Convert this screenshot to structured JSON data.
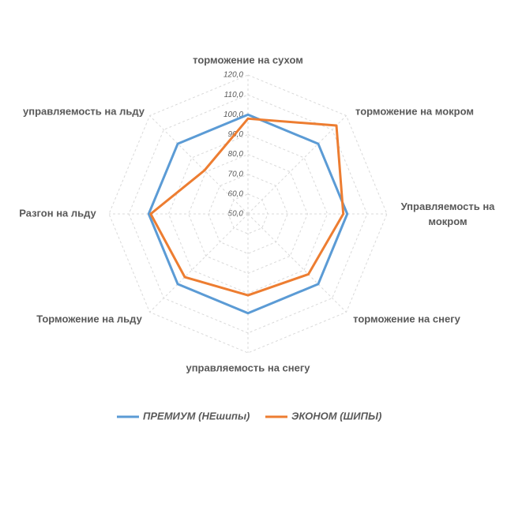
{
  "chart_data": {
    "type": "radar",
    "categories": [
      "торможение на сухом",
      "торможение на мокром",
      "Управляемость на мокром",
      "торможение на снегу",
      "управляемость на снегу",
      "Торможение на льду",
      "Разгон на льду",
      "управляемость на льду"
    ],
    "series": [
      {
        "name": "ПРЕМИУМ (НЕшипы)",
        "color": "#5b9bd5",
        "values": [
          100,
          100,
          100,
          100,
          100,
          100,
          100,
          100
        ]
      },
      {
        "name": "ЭКОНОМ (ШИПЫ)",
        "color": "#ed7d31",
        "values": [
          98,
          113,
          98,
          93,
          91,
          95,
          99,
          81
        ]
      }
    ],
    "ylim": [
      50,
      120
    ],
    "yticks": [
      {
        "value": 50,
        "label": "50,0"
      },
      {
        "value": 60,
        "label": "60,0"
      },
      {
        "value": 70,
        "label": "70,0"
      },
      {
        "value": 80,
        "label": "80,0"
      },
      {
        "value": 90,
        "label": "90,0"
      },
      {
        "value": 100,
        "label": "100,0"
      },
      {
        "value": 110,
        "label": "110,0"
      },
      {
        "value": 120,
        "label": "120,0"
      }
    ],
    "grid": true,
    "legend": "bottom"
  }
}
